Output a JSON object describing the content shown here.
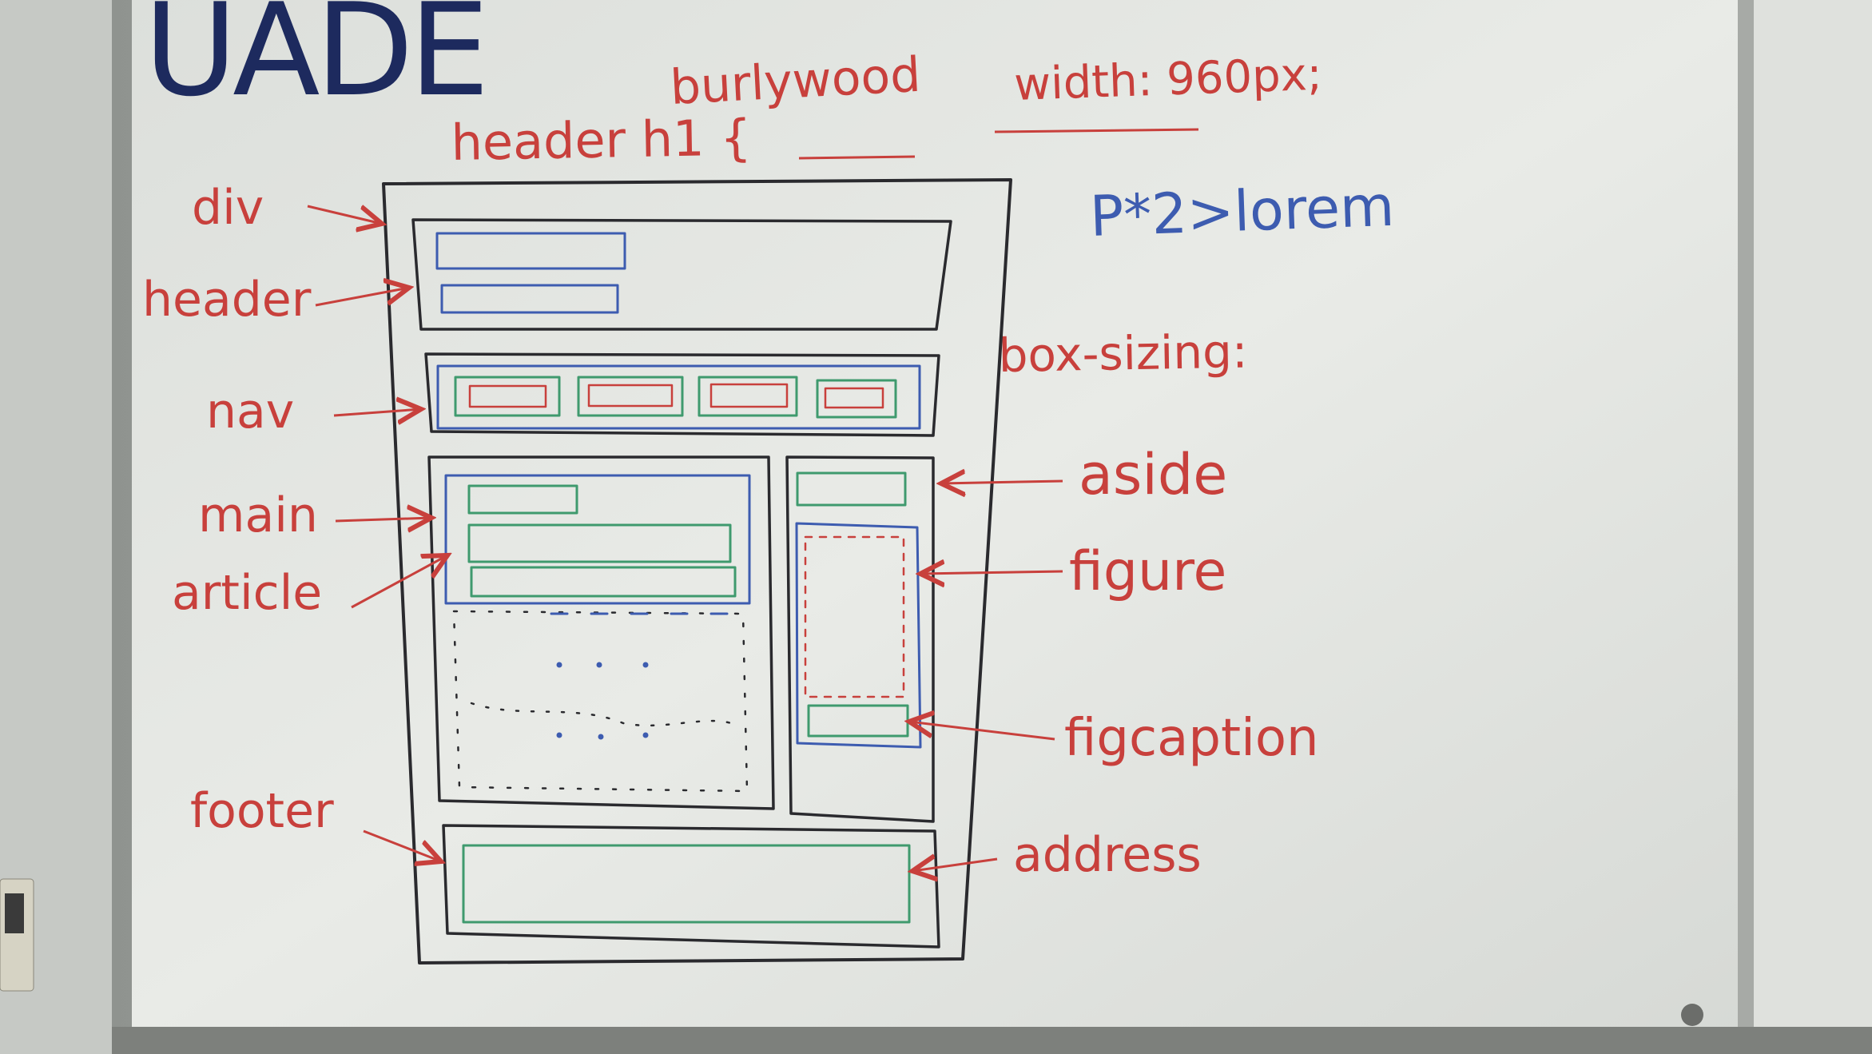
{
  "board": {
    "logo_text": "UADE",
    "notes": {
      "header_h1": "header h1 {",
      "burlywood": "burlywood",
      "width_960": "width: 960px;",
      "p2_lorem": "P*2>lorem",
      "box_sizing": "box-sizing:"
    },
    "labels_left": {
      "div": "div",
      "header": "header",
      "nav": "nav",
      "main": "main",
      "article": "article",
      "footer": "footer"
    },
    "labels_right": {
      "aside": "aside",
      "figure": "figure",
      "figcaption": "figcaption",
      "address": "address"
    }
  },
  "colors": {
    "marker_red": "#c8403c",
    "marker_blue": "#3d5cb0",
    "marker_green": "#3f9a6e",
    "marker_black": "#2a2a2e",
    "logo_navy": "#1d2a5e",
    "board_white": "#e7e9e5"
  }
}
